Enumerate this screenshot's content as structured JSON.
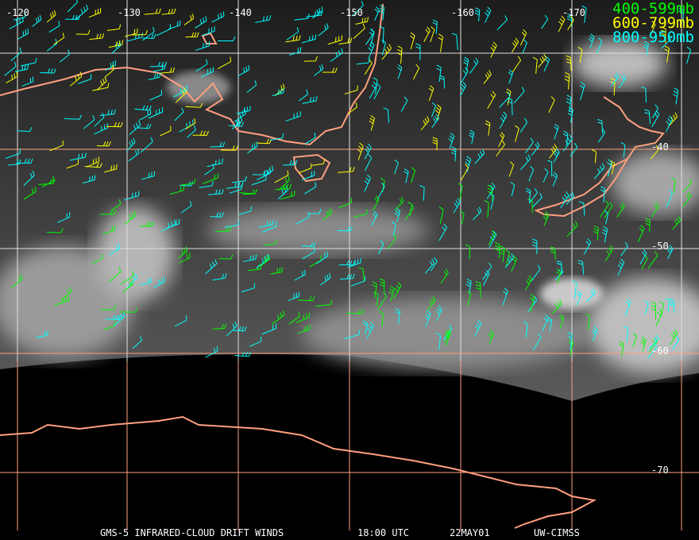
{
  "longitude_labels": [
    "-120",
    "-130",
    "-140",
    "-150",
    "-160",
    "-170"
  ],
  "latitude_labels": [
    "-40",
    "-50",
    "-60",
    "-70"
  ],
  "legend": [
    {
      "label": "400-599mb",
      "color": "#00ff00"
    },
    {
      "label": "600-799mb",
      "color": "#ffff00"
    },
    {
      "label": "800-950mb",
      "color": "#00ffff"
    }
  ],
  "caption": {
    "product": "GMS-5 INFRARED-CLOUD DRIFT WINDS",
    "time": "18:00 UTC",
    "date": "22MAY01",
    "source": "UW-CIMSS"
  },
  "colors": {
    "coastline": "#ff9f7f",
    "grid_dark": "#ff9f7f",
    "grid_light": "#e0e0e0",
    "background": "#000000"
  }
}
